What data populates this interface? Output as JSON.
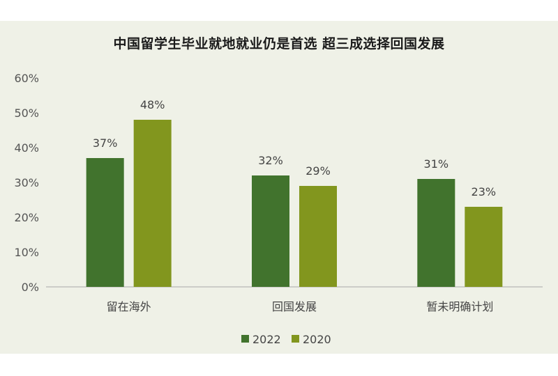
{
  "chart_data": {
    "type": "bar",
    "title": "中国留学生毕业就地就业仍是首选 超三成选择回国发展",
    "categories": [
      "留在海外",
      "回国发展",
      "暂未明确计划"
    ],
    "series": [
      {
        "name": "2022",
        "values": [
          37,
          32,
          31
        ],
        "labels": [
          "37%",
          "32%",
          "31%"
        ],
        "color": "#41732d"
      },
      {
        "name": "2020",
        "values": [
          48,
          29,
          23
        ],
        "labels": [
          "48%",
          "29%",
          "23%"
        ],
        "color": "#82961e"
      }
    ],
    "ylim": [
      0,
      60
    ],
    "yticks": [
      "0%",
      "10%",
      "20%",
      "30%",
      "40%",
      "50%",
      "60%"
    ],
    "grid": false,
    "legend": "bottom"
  }
}
